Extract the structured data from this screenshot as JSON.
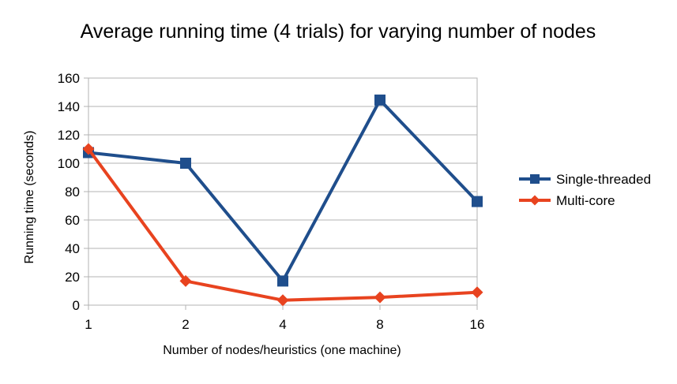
{
  "chart_data": {
    "type": "line",
    "title": "Average running time (4 trials) for varying number of nodes",
    "xlabel": "Number of nodes/heuristics (one machine)",
    "ylabel": "Running time (seconds)",
    "categories": [
      "1",
      "2",
      "4",
      "8",
      "16"
    ],
    "ylim": [
      0,
      160
    ],
    "yticks": [
      "0",
      "20",
      "40",
      "60",
      "80",
      "100",
      "120",
      "140",
      "160"
    ],
    "grid": true,
    "legend_position": "right",
    "series": [
      {
        "name": "Single-threaded",
        "values": [
          107.5,
          100,
          17,
          144.5,
          73
        ],
        "color": "#1f4e8c",
        "marker": "square"
      },
      {
        "name": "Multi-core",
        "values": [
          110,
          17,
          3.5,
          5.5,
          9
        ],
        "color": "#e8431f",
        "marker": "diamond"
      }
    ]
  }
}
